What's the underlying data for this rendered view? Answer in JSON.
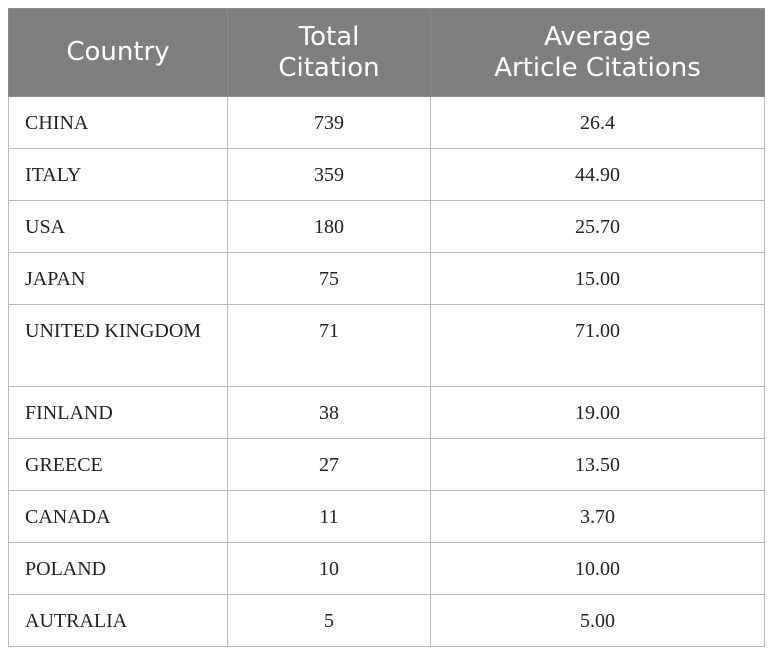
{
  "table": {
    "headers": [
      "Country",
      "Total\nCitation",
      "Average\nArticle Citations"
    ],
    "header_lines": [
      [
        "Country"
      ],
      [
        "Total",
        "Citation"
      ],
      [
        "Average",
        "Article Citations"
      ]
    ],
    "rows": [
      {
        "country": "CHINA",
        "total": "739",
        "average": "26.4"
      },
      {
        "country": "ITALY",
        "total": "359",
        "average": "44.90"
      },
      {
        "country": "USA",
        "total": "180",
        "average": "25.70"
      },
      {
        "country": "JAPAN",
        "total": "75",
        "average": "15.00"
      },
      {
        "country": "UNITED KINGDOM",
        "total": "71",
        "average": "71.00"
      },
      {
        "country": "FINLAND",
        "total": "38",
        "average": "19.00"
      },
      {
        "country": "GREECE",
        "total": "27",
        "average": "13.50"
      },
      {
        "country": "CANADA",
        "total": "11",
        "average": "3.70"
      },
      {
        "country": "POLAND",
        "total": "10",
        "average": "10.00"
      },
      {
        "country": "AUTRALIA",
        "total": "5",
        "average": "5.00"
      }
    ]
  },
  "colors": {
    "header_background": "#7f7f7f",
    "header_text": "#ffffff",
    "grid_lines": "#b9b9b9"
  }
}
